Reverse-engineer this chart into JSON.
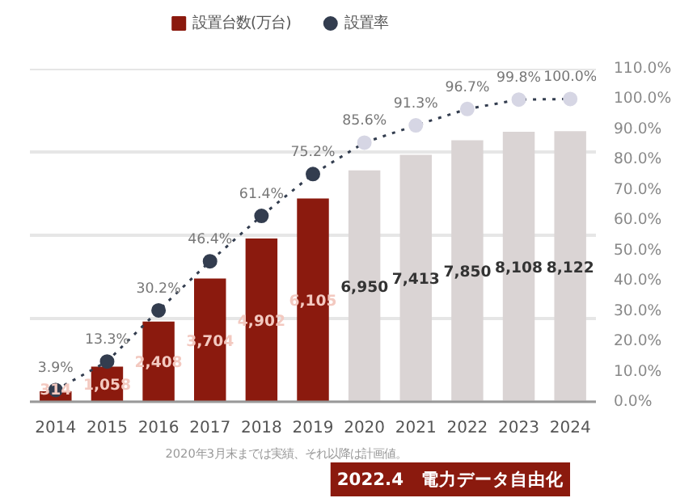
{
  "chart_data": {
    "type": "bar",
    "categories": [
      "2014",
      "2015",
      "2016",
      "2017",
      "2018",
      "2019",
      "2020",
      "2021",
      "2022",
      "2023",
      "2024"
    ],
    "series": [
      {
        "name": "設置台数(万台)",
        "color": "#8b1a0e",
        "colors": [
          "#8b1a0e",
          "#8b1a0e",
          "#8b1a0e",
          "#8b1a0e",
          "#8b1a0e",
          "#8b1a0e",
          "#dad4d4",
          "#dad4d4",
          "#dad4d4",
          "#dad4d4",
          "#dad4d4"
        ],
        "values": [
          314,
          1058,
          2408,
          3704,
          4902,
          6105,
          6950,
          7413,
          7850,
          8108,
          8122
        ],
        "value_labels": [
          "314",
          "1,058",
          "2,408",
          "3,704",
          "4,902",
          "6,105",
          "6,950",
          "7,413",
          "7,850",
          "8,108",
          "8,122"
        ]
      },
      {
        "name": "設置率",
        "type": "line",
        "axis": "y2",
        "color": "#333d4f",
        "colors": [
          "#333d4f",
          "#333d4f",
          "#333d4f",
          "#333d4f",
          "#333d4f",
          "#333d4f",
          "#d6d6e4",
          "#d6d6e4",
          "#d6d6e4",
          "#d6d6e4",
          "#d6d6e4"
        ],
        "marker": "circle",
        "line_style": "dotted",
        "values": [
          3.9,
          13.3,
          30.2,
          46.4,
          61.4,
          75.2,
          85.6,
          91.3,
          96.7,
          99.8,
          100.0
        ],
        "value_labels": [
          "3.9%",
          "13.3%",
          "30.2%",
          "46.4%",
          "61.4%",
          "75.2%",
          "85.6%",
          "91.3%",
          "96.7%",
          "99.8%",
          "100.0%"
        ]
      }
    ],
    "ylim": [
      0,
      10000
    ],
    "yticks": [
      {
        "value": 0,
        "label": null
      },
      {
        "value": 2500,
        "label": null
      },
      {
        "value": 5000,
        "label": null
      },
      {
        "value": 7500,
        "label": null
      },
      {
        "value": 10000,
        "label": null
      }
    ],
    "y2lim": [
      0,
      110
    ],
    "y2ticks": [
      {
        "value": 0,
        "label": "0.0%"
      },
      {
        "value": 10,
        "label": "10.0%"
      },
      {
        "value": 20,
        "label": "20.0%"
      },
      {
        "value": 30,
        "label": "30.0%"
      },
      {
        "value": 40,
        "label": "40.0%"
      },
      {
        "value": 50,
        "label": "50.0%"
      },
      {
        "value": 60,
        "label": "60.0%"
      },
      {
        "value": 70,
        "label": "70.0%"
      },
      {
        "value": 80,
        "label": "80.0%"
      },
      {
        "value": 90,
        "label": "90.0%"
      },
      {
        "value": 100,
        "label": "100.0%"
      },
      {
        "value": 110,
        "label": "110.0%"
      }
    ],
    "grid": "y",
    "legend": "top",
    "annotations": [
      "2020年3月末までは実績、それ以降は計画値。",
      "2022.4　電力データ自由化"
    ]
  }
}
